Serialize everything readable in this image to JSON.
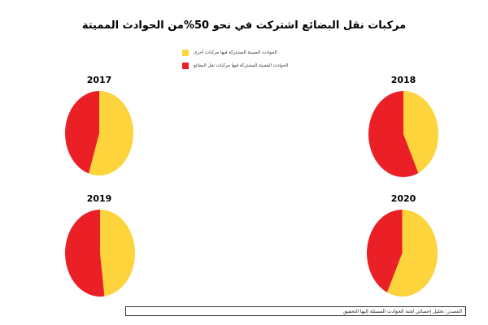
{
  "chart_data": {
    "type": "pie",
    "title": "مركبات نقل البضائع اشتركت في نحو 50%من الحوادث المميتة",
    "legend": {
      "placement": "top-center",
      "entries": [
        {
          "label": "الحوادث المميتة المشتركة فيها مركبات أخرى",
          "color": "#FDD43B"
        },
        {
          "label": "الحوادث المميتة المشتركة فيها مركبات نقل البضائع",
          "color": "#EB2027"
        }
      ]
    },
    "pies": [
      {
        "year": "2017",
        "slices": [
          {
            "label": "الحوادث المميتة المشتركة فيها مركبات أخرى",
            "value": 55
          },
          {
            "label": "الحوادث المميتة المشتركة فيها مركبات نقل البضائع",
            "value": 45
          }
        ]
      },
      {
        "year": "2018",
        "slices": [
          {
            "label": "الحوادث المميتة المشتركة فيها مركبات أخرى",
            "value": 43
          },
          {
            "label": "الحوادث المميتة المشتركة فيها مركبات نقل البضائع",
            "value": 57
          }
        ]
      },
      {
        "year": "2019",
        "slices": [
          {
            "label": "الحوادث المميتة المشتركة فيها مركبات أخرى",
            "value": 48
          },
          {
            "label": "الحوادث المميتة المشتركة فيها مركبات نقل البضائع",
            "value": 52
          }
        ]
      },
      {
        "year": "2020",
        "slices": [
          {
            "label": "الحوادث المميتة المشتركة فيها مركبات أخرى",
            "value": 57
          },
          {
            "label": "الحوادث المميتة المشتركة فيها مركبات نقل البضائع",
            "value": 43
          }
        ]
      }
    ]
  },
  "source": "المصدر: تحليل إحصائي لجنة الحوادث المسئلة إليها التحقيق"
}
